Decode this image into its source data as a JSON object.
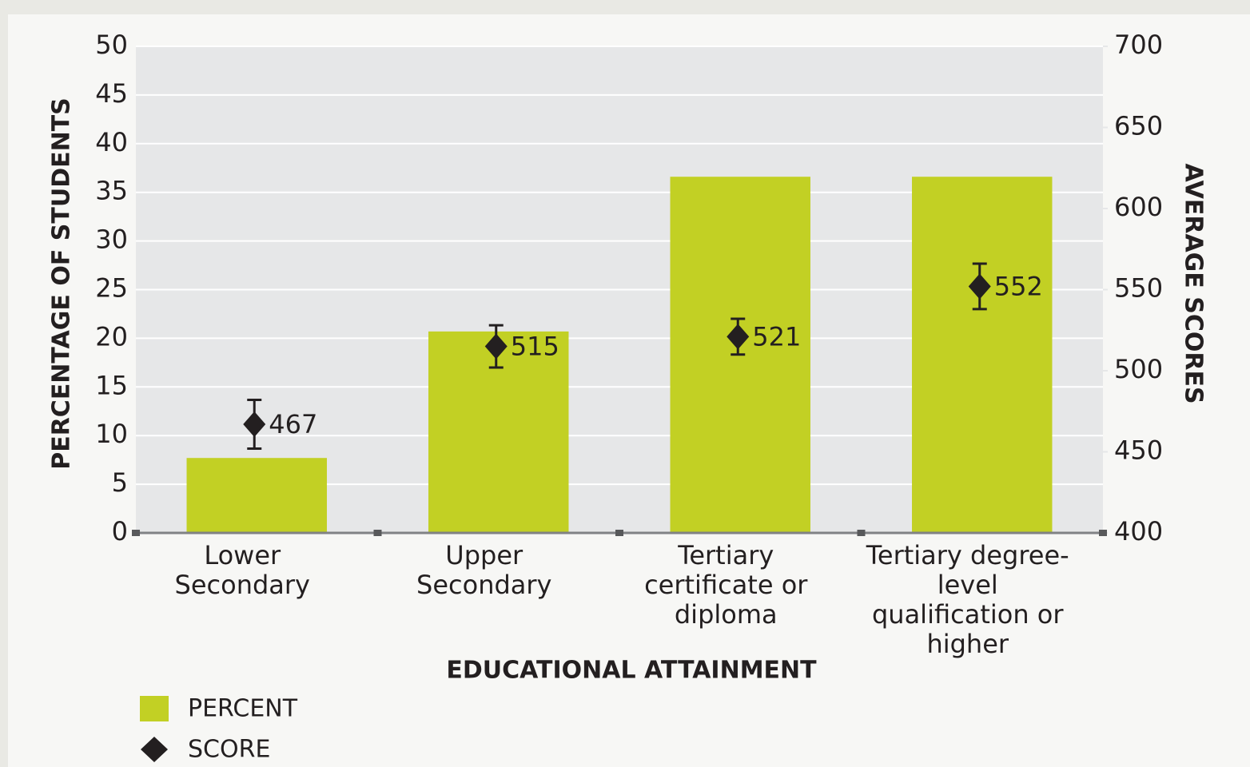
{
  "chart_data": {
    "type": "bar",
    "xlabel": "EDUCATIONAL ATTAINMENT",
    "ylabel": "PERCENTAGE OF STUDENTS",
    "y2label": "AVERAGE SCORES",
    "categories": [
      "Lower Secondary",
      "Upper Secondary",
      "Tertiary certificate or diploma",
      "Tertiary degree-level qualification or higher"
    ],
    "series": [
      {
        "name": "PERCENT",
        "type": "bar",
        "color": "#c2d024",
        "values": [
          7.7,
          20.7,
          36.6,
          36.6
        ]
      },
      {
        "name": "SCORE",
        "type": "scatter",
        "axis": "y2",
        "color": "#231f20",
        "values": [
          467,
          515,
          521,
          552
        ],
        "errors": [
          15,
          13,
          11,
          14
        ]
      }
    ],
    "ylim": [
      0,
      50
    ],
    "yticks": [
      0,
      5,
      10,
      15,
      20,
      25,
      30,
      35,
      40,
      45,
      50
    ],
    "y2lim": [
      400,
      700
    ],
    "y2ticks": [
      400,
      450,
      500,
      550,
      600,
      650,
      700
    ],
    "grid": true,
    "legend": "bottom-left"
  }
}
